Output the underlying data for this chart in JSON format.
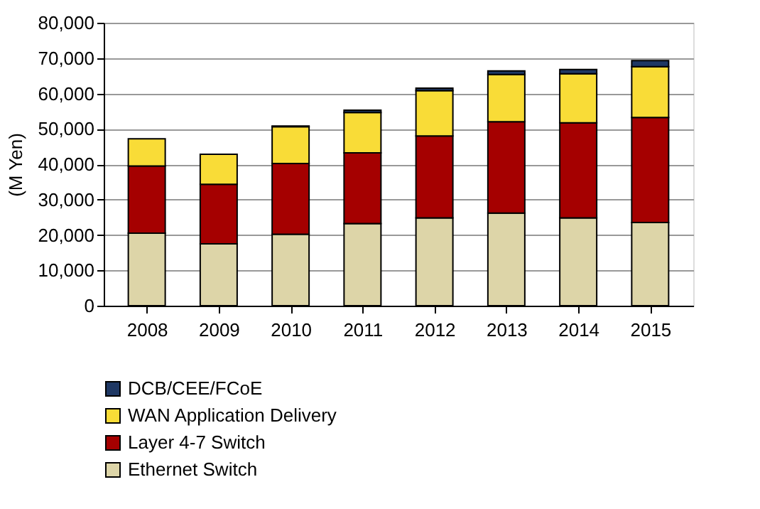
{
  "chart_data": {
    "type": "bar",
    "stacked": true,
    "ylabel": "(M Yen)",
    "categories": [
      "2008",
      "2009",
      "2010",
      "2011",
      "2012",
      "2013",
      "2014",
      "2015"
    ],
    "series": [
      {
        "name": "Ethernet Switch",
        "color": "#ddd5a8",
        "values": [
          20500,
          17500,
          20200,
          23200,
          24800,
          26200,
          24800,
          23500
        ]
      },
      {
        "name": "Layer 4-7  Switch",
        "color": "#a50000",
        "values": [
          19000,
          16800,
          20000,
          20000,
          23200,
          25800,
          26900,
          29700
        ]
      },
      {
        "name": "WAN Application Delivery",
        "color": "#f9dc37",
        "values": [
          7700,
          8500,
          10400,
          11400,
          12800,
          13400,
          13900,
          14400
        ]
      },
      {
        "name": "DCB/CEE/FCoE",
        "color": "#1f3864",
        "values": [
          null,
          null,
          200,
          700,
          700,
          1000,
          1200,
          1700
        ]
      }
    ],
    "ylim": [
      0,
      80000
    ],
    "yticks": [
      {
        "value": 0,
        "label": "0"
      },
      {
        "value": 10000,
        "label": "10,000"
      },
      {
        "value": 20000,
        "label": "20,000"
      },
      {
        "value": 30000,
        "label": "30,000"
      },
      {
        "value": 40000,
        "label": "40,000"
      },
      {
        "value": 50000,
        "label": "50,000"
      },
      {
        "value": 60000,
        "label": "60,000"
      },
      {
        "value": 70000,
        "label": "70,000"
      },
      {
        "value": 80000,
        "label": "80,000"
      }
    ],
    "grid": "y",
    "legend": "bottom"
  }
}
